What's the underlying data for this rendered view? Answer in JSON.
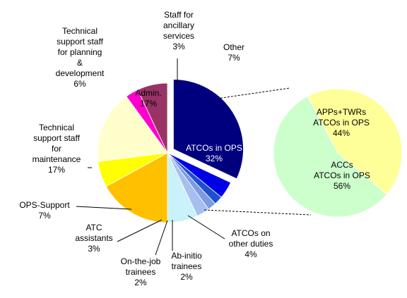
{
  "chart_data": {
    "type": "pie",
    "title": "",
    "slices": [
      {
        "label": [
          "ATCOs in OPS",
          "32%"
        ],
        "value": 32,
        "color": "#00007F"
      },
      {
        "label": [
          "ATCOs on",
          "other duties",
          "4%"
        ],
        "value": 4,
        "color": "#0000E6"
      },
      {
        "label": [
          "Ab-initio",
          "trainees",
          "2%"
        ],
        "value": 2,
        "color": "#1F4FD1"
      },
      {
        "label": [
          "On-the-job",
          "trainees",
          "2%"
        ],
        "value": 2,
        "color": "#7F9BE0"
      },
      {
        "label": [
          "ATC",
          "assistants",
          "3%"
        ],
        "value": 3,
        "color": "#A7BFF0"
      },
      {
        "label": [
          "OPS-Support",
          "7%"
        ],
        "value": 7,
        "color": "#C9F2FA"
      },
      {
        "label": [
          "Technical",
          "support staff",
          "for",
          "maintenance",
          "17%"
        ],
        "value": 17,
        "color": "#FFC000"
      },
      {
        "label": [
          "Technical",
          "support staff",
          "for planning",
          "&",
          "development",
          "6%"
        ],
        "value": 6,
        "color": "#FFFF00"
      },
      {
        "label": [
          "Admin.",
          "17%"
        ],
        "value": 17,
        "color": "#FFFFCC"
      },
      {
        "label": [
          "Staff for",
          "ancillary",
          "services",
          "3%"
        ],
        "value": 3,
        "color": "#FF00CC"
      },
      {
        "label": [
          "Other",
          "7%"
        ],
        "value": 7,
        "color": "#993366"
      }
    ],
    "breakdown": {
      "of": "ATCOs in OPS",
      "slices": [
        {
          "label": [
            "APPs+TWRs",
            "ATCOs in OPS",
            "44%"
          ],
          "value": 44,
          "color": "#FFFF99"
        },
        {
          "label": [
            "ACCs",
            "ATCOs in OPS",
            "56%"
          ],
          "value": 56,
          "color": "#CCFFCC"
        }
      ]
    }
  }
}
